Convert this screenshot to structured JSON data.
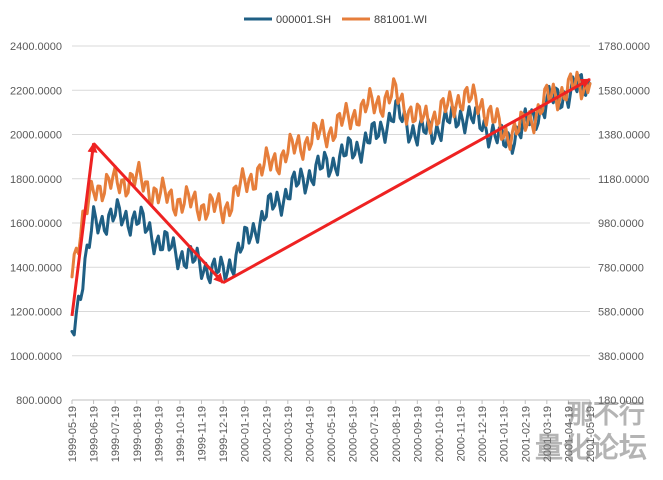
{
  "chart_data": {
    "type": "line",
    "title": "",
    "xlabel": "",
    "ylabel": "",
    "x": [
      "1999-05-19",
      "1999-06-19",
      "1999-07-19",
      "1999-08-19",
      "1999-09-19",
      "1999-10-19",
      "1999-11-19",
      "1999-12-19",
      "2000-01-19",
      "2000-02-19",
      "2000-03-19",
      "2000-04-19",
      "2000-05-19",
      "2000-06-19",
      "2000-07-19",
      "2000-08-19",
      "2000-09-19",
      "2000-10-19",
      "2000-11-19",
      "2000-12-19",
      "2001-01-19",
      "2001-02-19",
      "2001-03-19",
      "2001-04-19",
      "2001-05-19"
    ],
    "y_left": {
      "ylim": [
        800,
        2400
      ],
      "ticks": [
        "800.0000",
        "1000.0000",
        "1200.0000",
        "1400.0000",
        "1600.0000",
        "1800.0000",
        "2000.0000",
        "2200.0000",
        "2400.0000"
      ]
    },
    "y_right": {
      "ylim": [
        180,
        1780
      ],
      "ticks": [
        "180.0000",
        "380.0000",
        "580.0000",
        "780.0000",
        "980.0000",
        "1180.0000",
        "1380.0000",
        "1580.0000",
        "1780.0000"
      ]
    },
    "legend_position": "top",
    "series": [
      {
        "name": "000001.SH",
        "axis": "left",
        "color": "#1f5f84",
        "values": [
          1110,
          1600,
          1630,
          1620,
          1520,
          1460,
          1410,
          1370,
          1510,
          1650,
          1740,
          1820,
          1870,
          1930,
          1990,
          2100,
          2000,
          2030,
          2090,
          2050,
          1960,
          2040,
          2140,
          2190,
          2230
        ]
      },
      {
        "name": "881001.WI",
        "axis": "right",
        "color": "#e67e3b",
        "values": [
          800,
          1140,
          1160,
          1180,
          1110,
          1080,
          1060,
          1040,
          1160,
          1240,
          1300,
          1360,
          1400,
          1470,
          1520,
          1560,
          1450,
          1470,
          1550,
          1520,
          1380,
          1420,
          1540,
          1590,
          1610
        ]
      }
    ],
    "annotations": [
      {
        "type": "arrow",
        "color": "#ee2222",
        "from": [
          "1999-05-19",
          1180
        ],
        "to": [
          "1999-06-19",
          1960
        ]
      },
      {
        "type": "arrow",
        "color": "#ee2222",
        "from": [
          "1999-06-19",
          1960
        ],
        "to": [
          "1999-12-19",
          1330
        ]
      },
      {
        "type": "arrow",
        "color": "#ee2222",
        "from": [
          "1999-12-19",
          1330
        ],
        "to": [
          "2001-05-19",
          2250
        ]
      }
    ]
  },
  "watermark": {
    "line1": "那不行",
    "line2": "量化论坛"
  }
}
